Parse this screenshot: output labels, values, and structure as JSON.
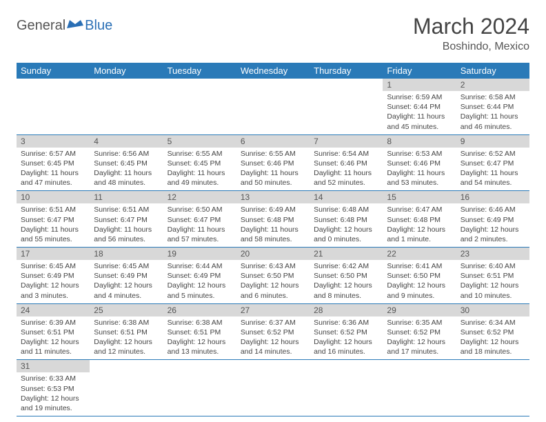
{
  "logo": {
    "text_general": "General",
    "text_blue": "Blue",
    "color_general": "#555555",
    "color_blue": "#2a6fb5"
  },
  "title": "March 2024",
  "location": "Boshindo, Mexico",
  "colors": {
    "header_bg": "#2a7ab8",
    "header_text": "#ffffff",
    "daynum_bg": "#d8d8d8",
    "daynum_text": "#555555",
    "body_text": "#444444",
    "divider": "#2a7ab8",
    "background": "#ffffff"
  },
  "typography": {
    "title_fontsize": 32,
    "location_fontsize": 16,
    "header_fontsize": 13,
    "daynum_fontsize": 12,
    "content_fontsize": 10.5
  },
  "structure": {
    "type": "calendar-table",
    "columns": 7,
    "rows": 6
  },
  "day_headers": [
    "Sunday",
    "Monday",
    "Tuesday",
    "Wednesday",
    "Thursday",
    "Friday",
    "Saturday"
  ],
  "weeks": [
    [
      null,
      null,
      null,
      null,
      null,
      {
        "n": "1",
        "sunrise": "Sunrise: 6:59 AM",
        "sunset": "Sunset: 6:44 PM",
        "daylight1": "Daylight: 11 hours",
        "daylight2": "and 45 minutes."
      },
      {
        "n": "2",
        "sunrise": "Sunrise: 6:58 AM",
        "sunset": "Sunset: 6:44 PM",
        "daylight1": "Daylight: 11 hours",
        "daylight2": "and 46 minutes."
      }
    ],
    [
      {
        "n": "3",
        "sunrise": "Sunrise: 6:57 AM",
        "sunset": "Sunset: 6:45 PM",
        "daylight1": "Daylight: 11 hours",
        "daylight2": "and 47 minutes."
      },
      {
        "n": "4",
        "sunrise": "Sunrise: 6:56 AM",
        "sunset": "Sunset: 6:45 PM",
        "daylight1": "Daylight: 11 hours",
        "daylight2": "and 48 minutes."
      },
      {
        "n": "5",
        "sunrise": "Sunrise: 6:55 AM",
        "sunset": "Sunset: 6:45 PM",
        "daylight1": "Daylight: 11 hours",
        "daylight2": "and 49 minutes."
      },
      {
        "n": "6",
        "sunrise": "Sunrise: 6:55 AM",
        "sunset": "Sunset: 6:46 PM",
        "daylight1": "Daylight: 11 hours",
        "daylight2": "and 50 minutes."
      },
      {
        "n": "7",
        "sunrise": "Sunrise: 6:54 AM",
        "sunset": "Sunset: 6:46 PM",
        "daylight1": "Daylight: 11 hours",
        "daylight2": "and 52 minutes."
      },
      {
        "n": "8",
        "sunrise": "Sunrise: 6:53 AM",
        "sunset": "Sunset: 6:46 PM",
        "daylight1": "Daylight: 11 hours",
        "daylight2": "and 53 minutes."
      },
      {
        "n": "9",
        "sunrise": "Sunrise: 6:52 AM",
        "sunset": "Sunset: 6:47 PM",
        "daylight1": "Daylight: 11 hours",
        "daylight2": "and 54 minutes."
      }
    ],
    [
      {
        "n": "10",
        "sunrise": "Sunrise: 6:51 AM",
        "sunset": "Sunset: 6:47 PM",
        "daylight1": "Daylight: 11 hours",
        "daylight2": "and 55 minutes."
      },
      {
        "n": "11",
        "sunrise": "Sunrise: 6:51 AM",
        "sunset": "Sunset: 6:47 PM",
        "daylight1": "Daylight: 11 hours",
        "daylight2": "and 56 minutes."
      },
      {
        "n": "12",
        "sunrise": "Sunrise: 6:50 AM",
        "sunset": "Sunset: 6:47 PM",
        "daylight1": "Daylight: 11 hours",
        "daylight2": "and 57 minutes."
      },
      {
        "n": "13",
        "sunrise": "Sunrise: 6:49 AM",
        "sunset": "Sunset: 6:48 PM",
        "daylight1": "Daylight: 11 hours",
        "daylight2": "and 58 minutes."
      },
      {
        "n": "14",
        "sunrise": "Sunrise: 6:48 AM",
        "sunset": "Sunset: 6:48 PM",
        "daylight1": "Daylight: 12 hours",
        "daylight2": "and 0 minutes."
      },
      {
        "n": "15",
        "sunrise": "Sunrise: 6:47 AM",
        "sunset": "Sunset: 6:48 PM",
        "daylight1": "Daylight: 12 hours",
        "daylight2": "and 1 minute."
      },
      {
        "n": "16",
        "sunrise": "Sunrise: 6:46 AM",
        "sunset": "Sunset: 6:49 PM",
        "daylight1": "Daylight: 12 hours",
        "daylight2": "and 2 minutes."
      }
    ],
    [
      {
        "n": "17",
        "sunrise": "Sunrise: 6:45 AM",
        "sunset": "Sunset: 6:49 PM",
        "daylight1": "Daylight: 12 hours",
        "daylight2": "and 3 minutes."
      },
      {
        "n": "18",
        "sunrise": "Sunrise: 6:45 AM",
        "sunset": "Sunset: 6:49 PM",
        "daylight1": "Daylight: 12 hours",
        "daylight2": "and 4 minutes."
      },
      {
        "n": "19",
        "sunrise": "Sunrise: 6:44 AM",
        "sunset": "Sunset: 6:49 PM",
        "daylight1": "Daylight: 12 hours",
        "daylight2": "and 5 minutes."
      },
      {
        "n": "20",
        "sunrise": "Sunrise: 6:43 AM",
        "sunset": "Sunset: 6:50 PM",
        "daylight1": "Daylight: 12 hours",
        "daylight2": "and 6 minutes."
      },
      {
        "n": "21",
        "sunrise": "Sunrise: 6:42 AM",
        "sunset": "Sunset: 6:50 PM",
        "daylight1": "Daylight: 12 hours",
        "daylight2": "and 8 minutes."
      },
      {
        "n": "22",
        "sunrise": "Sunrise: 6:41 AM",
        "sunset": "Sunset: 6:50 PM",
        "daylight1": "Daylight: 12 hours",
        "daylight2": "and 9 minutes."
      },
      {
        "n": "23",
        "sunrise": "Sunrise: 6:40 AM",
        "sunset": "Sunset: 6:51 PM",
        "daylight1": "Daylight: 12 hours",
        "daylight2": "and 10 minutes."
      }
    ],
    [
      {
        "n": "24",
        "sunrise": "Sunrise: 6:39 AM",
        "sunset": "Sunset: 6:51 PM",
        "daylight1": "Daylight: 12 hours",
        "daylight2": "and 11 minutes."
      },
      {
        "n": "25",
        "sunrise": "Sunrise: 6:38 AM",
        "sunset": "Sunset: 6:51 PM",
        "daylight1": "Daylight: 12 hours",
        "daylight2": "and 12 minutes."
      },
      {
        "n": "26",
        "sunrise": "Sunrise: 6:38 AM",
        "sunset": "Sunset: 6:51 PM",
        "daylight1": "Daylight: 12 hours",
        "daylight2": "and 13 minutes."
      },
      {
        "n": "27",
        "sunrise": "Sunrise: 6:37 AM",
        "sunset": "Sunset: 6:52 PM",
        "daylight1": "Daylight: 12 hours",
        "daylight2": "and 14 minutes."
      },
      {
        "n": "28",
        "sunrise": "Sunrise: 6:36 AM",
        "sunset": "Sunset: 6:52 PM",
        "daylight1": "Daylight: 12 hours",
        "daylight2": "and 16 minutes."
      },
      {
        "n": "29",
        "sunrise": "Sunrise: 6:35 AM",
        "sunset": "Sunset: 6:52 PM",
        "daylight1": "Daylight: 12 hours",
        "daylight2": "and 17 minutes."
      },
      {
        "n": "30",
        "sunrise": "Sunrise: 6:34 AM",
        "sunset": "Sunset: 6:52 PM",
        "daylight1": "Daylight: 12 hours",
        "daylight2": "and 18 minutes."
      }
    ],
    [
      {
        "n": "31",
        "sunrise": "Sunrise: 6:33 AM",
        "sunset": "Sunset: 6:53 PM",
        "daylight1": "Daylight: 12 hours",
        "daylight2": "and 19 minutes."
      },
      null,
      null,
      null,
      null,
      null,
      null
    ]
  ]
}
